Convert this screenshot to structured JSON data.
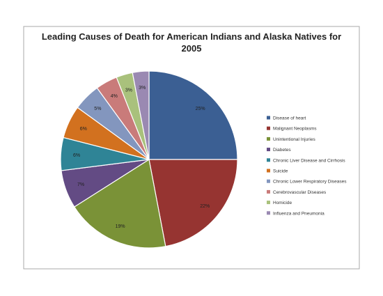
{
  "chart_data": {
    "type": "pie",
    "title": "Leading Causes of Death for American Indians and Alaska Natives for 2005",
    "title_lines": [
      "Leading Causes of Death for American Indians and Alaska Natives for",
      "2005"
    ],
    "legend_position": "right",
    "slices": [
      {
        "label": "Disease of heart",
        "value": 25,
        "pct_label": "25%",
        "color": "#3b5f93"
      },
      {
        "label": "Malignant Neoplasms",
        "value": 22,
        "pct_label": "22%",
        "color": "#963431"
      },
      {
        "label": "Unintentional Injuries",
        "value": 19,
        "pct_label": "19%",
        "color": "#7a9237"
      },
      {
        "label": "Diabetes",
        "value": 7,
        "pct_label": "7%",
        "color": "#634b84"
      },
      {
        "label": "Chronic Liver Disease and Cirrhosis",
        "value": 6,
        "pct_label": "6%",
        "color": "#2f8496"
      },
      {
        "label": "Suicide",
        "value": 6,
        "pct_label": "6%",
        "color": "#d2711f"
      },
      {
        "label": "Chronic Lower Respiratory Diseases",
        "value": 5,
        "pct_label": "5%",
        "color": "#8396be"
      },
      {
        "label": "Cerebrovascular Diseases",
        "value": 4,
        "pct_label": "4%",
        "color": "#c97b7a"
      },
      {
        "label": "Homicide",
        "value": 3,
        "pct_label": "3%",
        "color": "#a9c17c"
      },
      {
        "label": "Influenza and Pneumonia",
        "value": 3,
        "pct_label": "3%",
        "color": "#9a89b2"
      }
    ]
  }
}
